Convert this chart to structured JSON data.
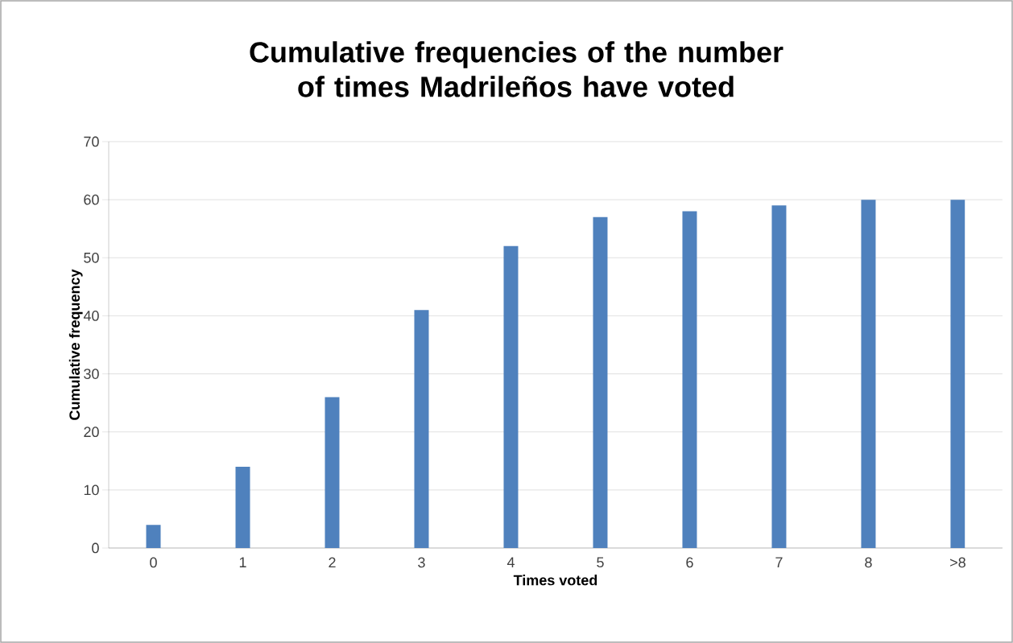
{
  "chart_data": {
    "type": "bar",
    "title": "Cumulative frequencies of the number of times Madrileños have voted",
    "xlabel": "Times voted",
    "ylabel": "Cumulative frequency",
    "categories": [
      "0",
      "1",
      "2",
      "3",
      "4",
      "5",
      "6",
      "7",
      "8",
      ">8"
    ],
    "values": [
      4,
      14,
      26,
      41,
      52,
      57,
      58,
      59,
      60,
      60
    ],
    "color": "#4f81bd",
    "ylim": [
      0,
      70
    ],
    "yticks": [
      0,
      10,
      20,
      30,
      40,
      50,
      60,
      70
    ],
    "grid": "y"
  }
}
